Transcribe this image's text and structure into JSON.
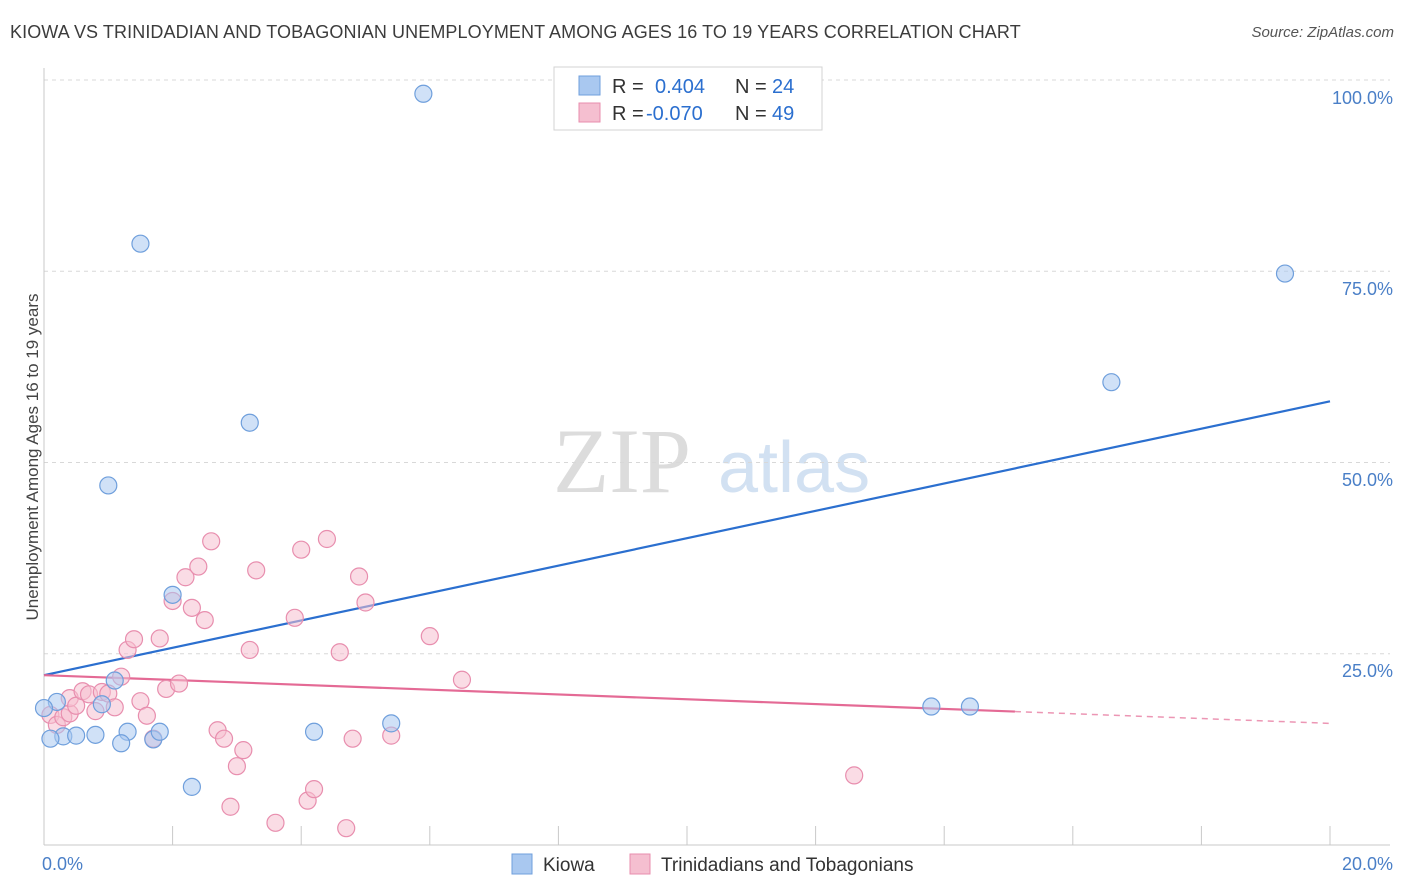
{
  "header": {
    "title": "KIOWA VS TRINIDADIAN AND TOBAGONIAN UNEMPLOYMENT AMONG AGES 16 TO 19 YEARS CORRELATION CHART",
    "source": "Source: ZipAtlas.com"
  },
  "watermark": {
    "zip": "ZIP",
    "atlas": "atlas"
  },
  "colors": {
    "kiowa": "#2b6fcf",
    "kiowa_fill": "#a9c8f0",
    "trini": "#e46a95",
    "trini_fill": "#f5bfd0",
    "label_blue": "#4a7fc7",
    "grid": "#d8d8d8"
  },
  "chart_data": {
    "type": "scatter",
    "title": "KIOWA VS TRINIDADIAN AND TOBAGONIAN UNEMPLOYMENT AMONG AGES 16 TO 19 YEARS CORRELATION CHART",
    "xlabel": "",
    "ylabel": "Unemployment Among Ages 16 to 19 years",
    "xlim": [
      0,
      20
    ],
    "ylim": [
      0,
      100
    ],
    "x_tick_labels": [
      "0.0%",
      "20.0%"
    ],
    "y_tick_labels": [
      "100.0%",
      "75.0%",
      "50.0%",
      "25.0%"
    ],
    "y_ticks": [
      100,
      75,
      50,
      25
    ],
    "legend_top": [
      {
        "r_label": "R =",
        "r_value": "0.404",
        "n_label": "N =",
        "n_value": "24"
      },
      {
        "r_label": "R =",
        "r_value": "-0.070",
        "n_label": "N =",
        "n_value": "49"
      }
    ],
    "series": [
      {
        "name": "Kiowa",
        "trend": {
          "x0": 0,
          "y0": 22.2,
          "x1": 20,
          "y1": 58.0,
          "solid_until": 20
        },
        "points": [
          [
            5.9,
            98.2
          ],
          [
            1.5,
            78.6
          ],
          [
            19.3,
            74.7
          ],
          [
            3.2,
            55.2
          ],
          [
            16.6,
            60.5
          ],
          [
            1.0,
            47.0
          ],
          [
            2.0,
            32.7
          ],
          [
            1.1,
            21.5
          ],
          [
            0.2,
            18.7
          ],
          [
            0.0,
            17.9
          ],
          [
            0.3,
            14.2
          ],
          [
            0.1,
            13.9
          ],
          [
            0.8,
            14.4
          ],
          [
            0.5,
            14.3
          ],
          [
            1.3,
            14.8
          ],
          [
            1.2,
            13.3
          ],
          [
            1.7,
            13.8
          ],
          [
            1.8,
            14.8
          ],
          [
            2.3,
            7.6
          ],
          [
            4.2,
            14.8
          ],
          [
            5.4,
            15.9
          ],
          [
            13.8,
            18.1
          ],
          [
            14.4,
            18.1
          ],
          [
            0.9,
            18.4
          ]
        ]
      },
      {
        "name": "Trinidadians and Tobagonians",
        "trend": {
          "x0": 0,
          "y0": 22.2,
          "x1": 20,
          "y1": 15.9,
          "solid_until": 15.1
        },
        "points": [
          [
            0.1,
            17.0
          ],
          [
            0.2,
            15.7
          ],
          [
            0.3,
            16.7
          ],
          [
            0.4,
            17.2
          ],
          [
            0.4,
            19.2
          ],
          [
            0.5,
            18.2
          ],
          [
            0.6,
            20.1
          ],
          [
            0.7,
            19.7
          ],
          [
            0.8,
            17.5
          ],
          [
            0.9,
            20.0
          ],
          [
            1.0,
            19.8
          ],
          [
            1.1,
            18.0
          ],
          [
            1.2,
            22.0
          ],
          [
            1.3,
            25.5
          ],
          [
            1.4,
            26.9
          ],
          [
            1.5,
            18.8
          ],
          [
            1.6,
            16.9
          ],
          [
            1.7,
            13.9
          ],
          [
            1.8,
            27.0
          ],
          [
            1.9,
            20.4
          ],
          [
            2.0,
            31.9
          ],
          [
            2.1,
            21.1
          ],
          [
            2.2,
            35.0
          ],
          [
            2.3,
            31.0
          ],
          [
            2.4,
            36.4
          ],
          [
            2.5,
            29.4
          ],
          [
            2.6,
            39.7
          ],
          [
            2.7,
            15.0
          ],
          [
            2.8,
            13.9
          ],
          [
            2.9,
            5.0
          ],
          [
            3.0,
            10.3
          ],
          [
            3.1,
            12.4
          ],
          [
            3.2,
            25.5
          ],
          [
            3.3,
            35.9
          ],
          [
            3.6,
            2.9
          ],
          [
            3.9,
            29.7
          ],
          [
            4.0,
            38.6
          ],
          [
            4.1,
            5.8
          ],
          [
            4.2,
            7.3
          ],
          [
            4.4,
            40.0
          ],
          [
            4.6,
            25.2
          ],
          [
            4.7,
            2.2
          ],
          [
            4.8,
            13.9
          ],
          [
            4.9,
            35.1
          ],
          [
            5.0,
            31.7
          ],
          [
            5.4,
            14.3
          ],
          [
            6.0,
            27.3
          ],
          [
            6.5,
            21.6
          ],
          [
            12.6,
            9.1
          ]
        ]
      }
    ]
  },
  "legend_bottom": {
    "kiowa": "Kiowa",
    "trini": "Trinidadians and Tobagonians"
  }
}
